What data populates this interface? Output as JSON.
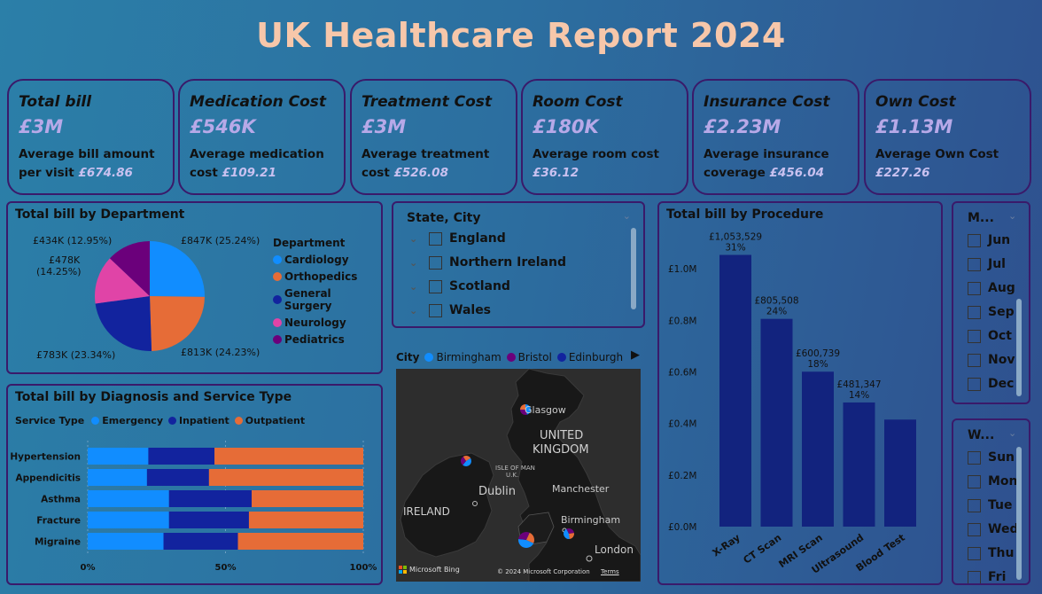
{
  "report_title": "UK Healthcare Report 2024",
  "kpis": [
    {
      "title": "Total bill",
      "value": "£3M",
      "desc": "Average bill amount per visit",
      "desc_value": "£674.86"
    },
    {
      "title": "Medication Cost",
      "value": "£546K",
      "desc": "Average medication cost",
      "desc_value": "£109.21"
    },
    {
      "title": "Treatment Cost",
      "value": "£3M",
      "desc": "Average treatment cost",
      "desc_value": "£526.08"
    },
    {
      "title": "Room Cost",
      "value": "£180K",
      "desc": "Average room cost",
      "desc_value": "£36.12"
    },
    {
      "title": "Insurance Cost",
      "value": "£2.23M",
      "desc": "Average insurance coverage",
      "desc_value": "£456.04"
    },
    {
      "title": "Own Cost",
      "value": "£1.13M",
      "desc": "Average Own Cost",
      "desc_value": "£227.26"
    }
  ],
  "dept_chart": {
    "title": "Total bill by Department",
    "legend_title": "Department",
    "slices": [
      {
        "name": "Cardiology",
        "label": "£847K (25.24%)",
        "pct": 25.24,
        "color": "#118dff"
      },
      {
        "name": "Orthopedics",
        "label": "£813K (24.23%)",
        "pct": 24.23,
        "color": "#e66c37"
      },
      {
        "name": "General Surgery",
        "label": "£783K (23.34%)",
        "pct": 23.34,
        "color": "#12239e"
      },
      {
        "name": "Neurology",
        "label_line1": "£478K",
        "label_line2": "(14.25%)",
        "pct": 14.25,
        "color": "#e044a7"
      },
      {
        "name": "Pediatrics",
        "label": "£434K (12.95%)",
        "pct": 12.95,
        "color": "#6b007b"
      }
    ]
  },
  "diag_chart": {
    "title": "Total bill by Diagnosis and Service Type",
    "legend_title": "Service Type",
    "series": [
      {
        "name": "Emergency",
        "color": "#118dff"
      },
      {
        "name": "Inpatient",
        "color": "#12239e"
      },
      {
        "name": "Outpatient",
        "color": "#e66c37"
      }
    ],
    "rows": [
      {
        "name": "Hypertension",
        "values": [
          22,
          24,
          54
        ]
      },
      {
        "name": "Appendicitis",
        "values": [
          21.5,
          22.5,
          56
        ]
      },
      {
        "name": "Asthma",
        "values": [
          29.5,
          30,
          40.5
        ]
      },
      {
        "name": "Fracture",
        "values": [
          29.5,
          29,
          41.5
        ]
      },
      {
        "name": "Migraine",
        "values": [
          27.5,
          27,
          45.5
        ]
      }
    ],
    "ticks": [
      "0%",
      "50%",
      "100%"
    ]
  },
  "state_slicer": {
    "title": "State, City",
    "items": [
      "England",
      "Northern Ireland",
      "Scotland",
      "Wales"
    ]
  },
  "map": {
    "legend_title": "City",
    "cities": [
      {
        "name": "Birmingham",
        "color": "#118dff"
      },
      {
        "name": "Bristol",
        "color": "#6b007b"
      },
      {
        "name": "Edinburgh",
        "color": "#12239e"
      }
    ],
    "labels": {
      "glasgow": "Glasgow",
      "uk1": "UNITED",
      "uk2": "KINGDOM",
      "iom1": "ISLE OF MAN",
      "iom2": "U.K.",
      "dublin": "Dublin",
      "manchester": "Manchester",
      "ireland": "IRELAND",
      "birmingham": "Birmingham",
      "london": "London"
    },
    "bing": "Microsoft Bing",
    "copyright": "© 2024 Microsoft Corporation",
    "terms": "Terms"
  },
  "chart_data": {
    "type": "bar",
    "title": "Total bill by Procedure",
    "categories": [
      "X-Ray",
      "CT Scan",
      "MRI Scan",
      "Ultrasound",
      "Blood Test"
    ],
    "values": [
      1053529,
      805508,
      600739,
      481347,
      415000
    ],
    "data_labels": [
      {
        "amount": "£1,053,529",
        "pct": "31%"
      },
      {
        "amount": "£805,508",
        "pct": "24%"
      },
      {
        "amount": "£600,739",
        "pct": "18%"
      },
      {
        "amount": "£481,347",
        "pct": "14%"
      },
      {
        "amount": "",
        "pct": ""
      }
    ],
    "yticks": [
      "£0.0M",
      "£0.2M",
      "£0.4M",
      "£0.6M",
      "£0.8M",
      "£1.0M"
    ],
    "ylim": [
      0,
      1100000
    ],
    "color": "#12237e"
  },
  "month_slicer": {
    "title": "M...",
    "items": [
      "Jun",
      "Jul",
      "Aug",
      "Sep",
      "Oct",
      "Nov",
      "Dec"
    ]
  },
  "weekday_slicer": {
    "title": "W...",
    "items": [
      "Sun",
      "Mon",
      "Tue",
      "Wed",
      "Thu",
      "Fri"
    ]
  }
}
